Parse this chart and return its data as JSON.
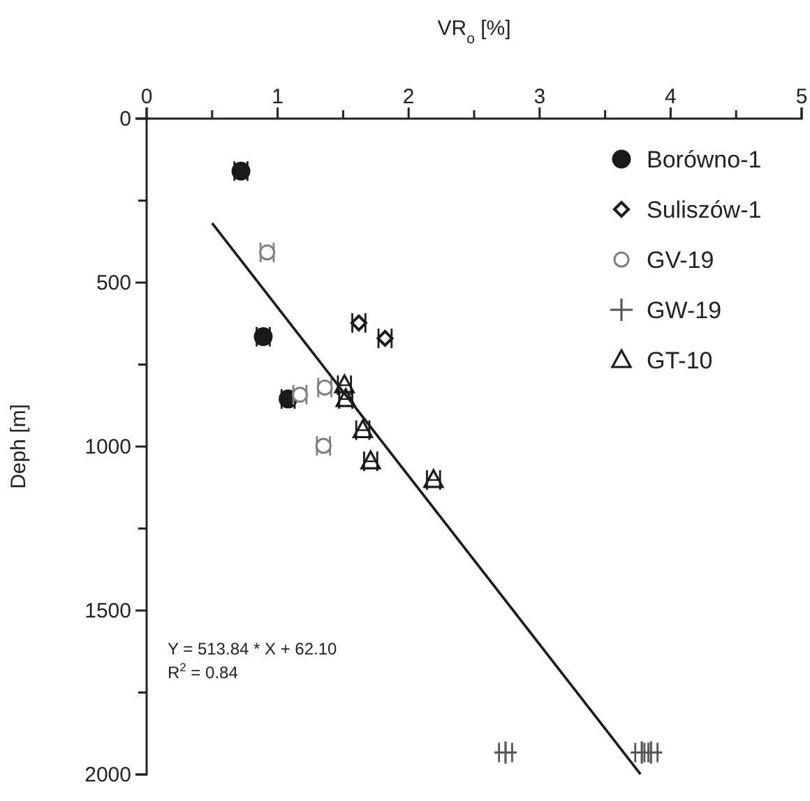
{
  "chart_data": {
    "type": "scatter",
    "xlabel": "VR$_{o}$ [%]",
    "ylabel": "Deph [m]",
    "xlim": [
      0,
      5
    ],
    "ylim": [
      2000,
      0
    ],
    "xticks": [
      0,
      {
        "value": 0.5,
        "label": null
      },
      1,
      {
        "value": 1.5,
        "label": null
      },
      2,
      {
        "value": 2.5,
        "label": null
      },
      3,
      {
        "value": 3.5,
        "label": null
      },
      4,
      {
        "value": 4.5,
        "label": null
      },
      5
    ],
    "yticks": [
      0,
      {
        "value": 250,
        "label": null
      },
      500,
      {
        "value": 750,
        "label": null
      },
      1000,
      {
        "value": 1250,
        "label": null
      },
      1500,
      {
        "value": 1750,
        "label": null
      },
      2000
    ],
    "legend": "top right",
    "grid": false,
    "annotations": [
      "Y = 513.84 * X + 62.10",
      "R$^{2}$ = 0.84"
    ],
    "series": [
      {
        "name": "Borówno-1",
        "color": "#1a1a1a",
        "marker": "circle",
        "x": [
          0.72,
          0.89,
          1.08
        ],
        "values": [
          160,
          665,
          855
        ],
        "xerrors": [
          0.05,
          0.05,
          0.05
        ]
      },
      {
        "name": "Suliszów-1",
        "color": "#1a1a1a",
        "marker": "diamond",
        "x": [
          1.62,
          1.82
        ],
        "values": [
          623,
          670
        ],
        "xerrors": [
          0.05,
          0.05
        ]
      },
      {
        "name": "GV-19",
        "color": "#808080",
        "marker": "circle",
        "x": [
          0.92,
          1.17,
          1.36,
          1.35
        ],
        "values": [
          408,
          842,
          820,
          998
        ],
        "xerrors": [
          0.05,
          0.05,
          0.05,
          0.05
        ]
      },
      {
        "name": "GW-19",
        "color": "#555555",
        "marker": "cross",
        "x": [
          2.74,
          3.78,
          3.85
        ],
        "values": [
          1933,
          1933,
          1933
        ],
        "xerrors": [
          0.05,
          0.05,
          0.05
        ]
      },
      {
        "name": "GT-10",
        "color": "#1a1a1a",
        "marker": "triangle",
        "x": [
          1.51,
          1.52,
          1.65,
          1.71,
          2.19
        ],
        "values": [
          813,
          855,
          950,
          1045,
          1102
        ],
        "xerrors": [
          0.05,
          0.05,
          0.05,
          0.05,
          0.05
        ]
      },
      {
        "type": "line",
        "color": "#1a1a1a",
        "marker": "none",
        "x": [
          0.5,
          3.77
        ],
        "values": [
          319,
          1999
        ]
      }
    ]
  }
}
